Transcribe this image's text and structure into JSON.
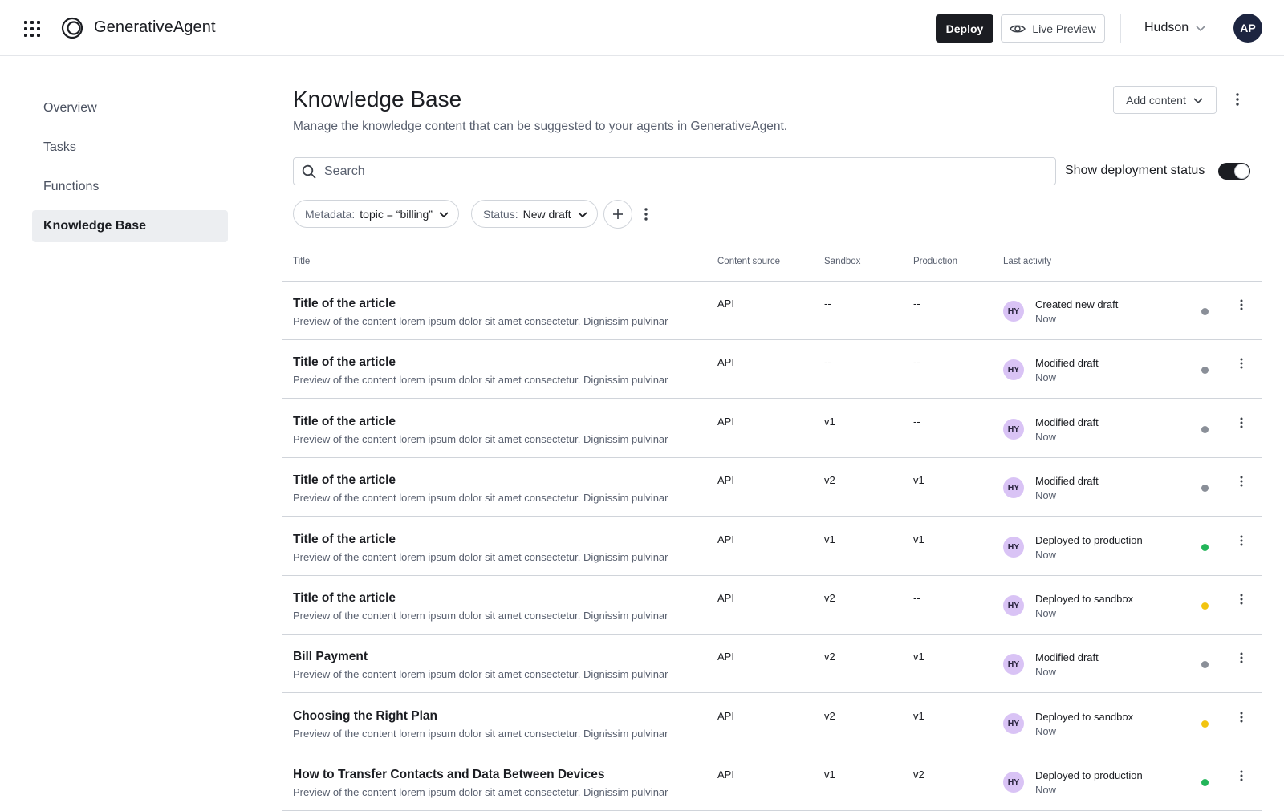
{
  "header": {
    "app_title": "GenerativeAgent",
    "deploy_label": "Deploy",
    "live_preview_label": "Live Preview",
    "user_name": "Hudson",
    "avatar_initials": "AP"
  },
  "sidebar": {
    "items": [
      {
        "label": "Overview",
        "active": false
      },
      {
        "label": "Tasks",
        "active": false
      },
      {
        "label": "Functions",
        "active": false
      },
      {
        "label": "Knowledge Base",
        "active": true
      }
    ]
  },
  "main": {
    "title": "Knowledge Base",
    "subtitle": "Manage the knowledge content that can be suggested to your agents in GenerativeAgent.",
    "add_content_label": "Add content",
    "search_placeholder": "Search",
    "toggle_label": "Show deployment status",
    "toggle_on": true,
    "filters": [
      {
        "key": "Metadata:",
        "value": "topic = “billing”"
      },
      {
        "key": "Status:",
        "value": "New draft"
      }
    ]
  },
  "table": {
    "columns": [
      "Title",
      "Content source",
      "Sandbox",
      "Production",
      "Last activity"
    ],
    "rows": [
      {
        "title": "Title of the article",
        "preview": "Preview of the content lorem ipsum dolor sit amet consectetur. Dignissim pulvinar",
        "source": "API",
        "sandbox": "--",
        "production": "--",
        "initials": "HY",
        "activity": "Created new draft",
        "time": "Now",
        "status": "draft"
      },
      {
        "title": "Title of the article",
        "preview": "Preview of the content lorem ipsum dolor sit amet consectetur. Dignissim pulvinar",
        "source": "API",
        "sandbox": "--",
        "production": "--",
        "initials": "HY",
        "activity": "Modified draft",
        "time": "Now",
        "status": "draft"
      },
      {
        "title": "Title of the article",
        "preview": "Preview of the content lorem ipsum dolor sit amet consectetur. Dignissim pulvinar",
        "source": "API",
        "sandbox": "v1",
        "production": "--",
        "initials": "HY",
        "activity": "Modified draft",
        "time": "Now",
        "status": "draft"
      },
      {
        "title": "Title of the article",
        "preview": "Preview of the content lorem ipsum dolor sit amet consectetur. Dignissim pulvinar",
        "source": "API",
        "sandbox": "v2",
        "production": "v1",
        "initials": "HY",
        "activity": "Modified draft",
        "time": "Now",
        "status": "draft"
      },
      {
        "title": "Title of the article",
        "preview": "Preview of the content lorem ipsum dolor sit amet consectetur. Dignissim pulvinar",
        "source": "API",
        "sandbox": "v1",
        "production": "v1",
        "initials": "HY",
        "activity": "Deployed to production",
        "time": "Now",
        "status": "production"
      },
      {
        "title": "Title of the article",
        "preview": "Preview of the content lorem ipsum dolor sit amet consectetur. Dignissim pulvinar",
        "source": "API",
        "sandbox": "v2",
        "production": "--",
        "initials": "HY",
        "activity": "Deployed to sandbox",
        "time": "Now",
        "status": "sandbox"
      },
      {
        "title": "Bill Payment",
        "preview": "Preview of the content lorem ipsum dolor sit amet consectetur. Dignissim pulvinar",
        "source": "API",
        "sandbox": "v2",
        "production": "v1",
        "initials": "HY",
        "activity": "Modified draft",
        "time": "Now",
        "status": "draft"
      },
      {
        "title": "Choosing the Right Plan",
        "preview": "Preview of the content lorem ipsum dolor sit amet consectetur. Dignissim pulvinar",
        "source": "API",
        "sandbox": "v2",
        "production": "v1",
        "initials": "HY",
        "activity": "Deployed to sandbox",
        "time": "Now",
        "status": "sandbox"
      },
      {
        "title": "How to Transfer Contacts and Data Between Devices",
        "preview": "Preview of the content lorem ipsum dolor sit amet consectetur. Dignissim pulvinar",
        "source": "API",
        "sandbox": "v1",
        "production": "v2",
        "initials": "HY",
        "activity": "Deployed to production",
        "time": "Now",
        "status": "production"
      }
    ]
  },
  "status_colors": {
    "draft": "#8a8f98",
    "production": "#22b559",
    "sandbox": "#f2c40f"
  },
  "icons": {
    "apps": "grid-icon",
    "logo": "logo-icon",
    "preview": "eye-icon",
    "user_menu": "chevron-down-icon",
    "search": "search-icon",
    "add_filter": "plus-icon",
    "more": "kebab-icon"
  }
}
